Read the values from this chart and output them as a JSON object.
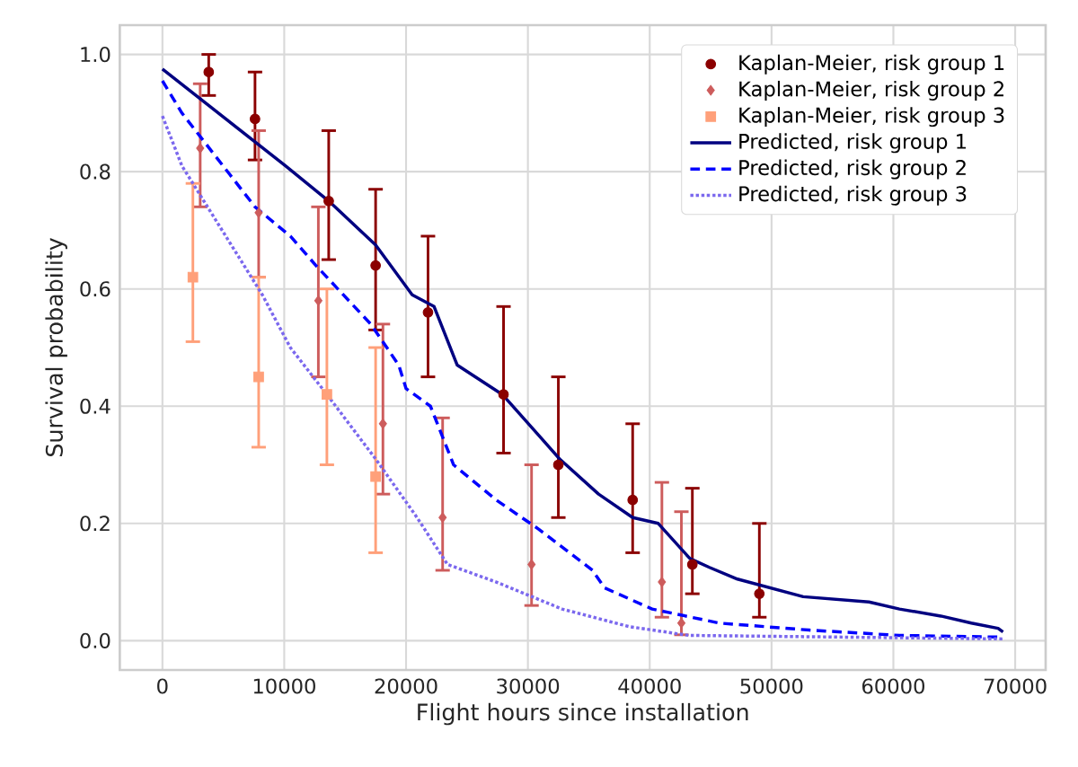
{
  "chart_data": {
    "type": "line",
    "xlabel": "Flight hours since installation",
    "ylabel": "Survival probability",
    "xlim": [
      -3500,
      72500
    ],
    "ylim": [
      -0.05,
      1.05
    ],
    "xticks": [
      0,
      10000,
      20000,
      30000,
      40000,
      50000,
      60000,
      70000
    ],
    "yticks": [
      {
        "value": 0,
        "label": "0.0"
      },
      {
        "value": 0.2,
        "label": "0.2"
      },
      {
        "value": 0.4,
        "label": "0.4"
      },
      {
        "value": 0.6,
        "label": "0.6"
      },
      {
        "value": 0.8,
        "label": "0.8"
      },
      {
        "value": 1,
        "label": "1.0"
      }
    ],
    "grid": true,
    "legend": "top right",
    "series": [
      {
        "name": "Kaplan-Meier, risk group 1",
        "type": "scatter",
        "marker": "circle",
        "color": "#8b0000",
        "x": [
          3800,
          7600,
          13650,
          17500,
          21800,
          28000,
          32500,
          38600,
          43500,
          49000
        ],
        "values": [
          0.97,
          0.89,
          0.75,
          0.64,
          0.56,
          0.42,
          0.3,
          0.24,
          0.13,
          0.08
        ],
        "errors": [
          [
            0.93,
            1.0
          ],
          [
            0.82,
            0.97
          ],
          [
            0.65,
            0.87
          ],
          [
            0.53,
            0.77
          ],
          [
            0.45,
            0.69
          ],
          [
            0.32,
            0.57
          ],
          [
            0.21,
            0.45
          ],
          [
            0.15,
            0.37
          ],
          [
            0.08,
            0.26
          ],
          [
            0.04,
            0.2
          ]
        ]
      },
      {
        "name": "Kaplan-Meier, risk group 2",
        "type": "scatter",
        "marker": "diamond",
        "color": "#cd5c5c",
        "x": [
          3100,
          7900,
          12800,
          18100,
          23000,
          30300,
          41000,
          42600
        ],
        "values": [
          0.84,
          0.73,
          0.58,
          0.37,
          0.21,
          0.13,
          0.1,
          0.03
        ],
        "errors": [
          [
            0.74,
            0.95
          ],
          [
            0.62,
            0.87
          ],
          [
            0.45,
            0.74
          ],
          [
            0.25,
            0.54
          ],
          [
            0.12,
            0.38
          ],
          [
            0.06,
            0.3
          ],
          [
            0.04,
            0.27
          ],
          [
            0.01,
            0.22
          ]
        ]
      },
      {
        "name": "Kaplan-Meier, risk group 3",
        "type": "scatter",
        "marker": "square",
        "color": "#ffa07a",
        "x": [
          2500,
          7900,
          13500,
          17500
        ],
        "values": [
          0.62,
          0.45,
          0.42,
          0.28
        ],
        "errors": [
          [
            0.51,
            0.78
          ],
          [
            0.33,
            0.62
          ],
          [
            0.3,
            0.6
          ],
          [
            0.15,
            0.5
          ]
        ]
      },
      {
        "name": "Predicted, risk group 1",
        "line_style": "solid",
        "color": "#000080",
        "x": [
          0,
          5200,
          10100,
          13650,
          17500,
          20500,
          22300,
          24200,
          27900,
          30900,
          32600,
          35800,
          38600,
          40700,
          43300,
          44900,
          47200,
          52600,
          58000,
          60500,
          63900,
          66400,
          68600,
          69000
        ],
        "values": [
          0.975,
          0.89,
          0.81,
          0.75,
          0.675,
          0.59,
          0.57,
          0.47,
          0.42,
          0.35,
          0.31,
          0.25,
          0.21,
          0.2,
          0.14,
          0.125,
          0.105,
          0.075,
          0.066,
          0.054,
          0.042,
          0.03,
          0.021,
          0.015
        ]
      },
      {
        "name": "Predicted, risk group 2",
        "line_style": "dashed",
        "color": "#0000ff",
        "x": [
          0,
          1600,
          7600,
          10500,
          12600,
          17100,
          19400,
          20000,
          22000,
          23900,
          27400,
          30900,
          35300,
          36300,
          40200,
          45700,
          53100,
          60500,
          69000
        ],
        "values": [
          0.955,
          0.9,
          0.74,
          0.69,
          0.64,
          0.54,
          0.47,
          0.43,
          0.4,
          0.3,
          0.24,
          0.19,
          0.12,
          0.09,
          0.054,
          0.03,
          0.018,
          0.009,
          0.006
        ]
      },
      {
        "name": "Predicted, risk group 3",
        "line_style": "dotted",
        "color": "#7b68ee",
        "x": [
          0,
          1600,
          5200,
          8200,
          10500,
          13500,
          17500,
          20900,
          23400,
          27400,
          32800,
          38300,
          43200,
          69000
        ],
        "values": [
          0.895,
          0.81,
          0.69,
          0.59,
          0.5,
          0.42,
          0.31,
          0.21,
          0.13,
          0.1,
          0.054,
          0.024,
          0.009,
          0.003
        ]
      }
    ]
  }
}
